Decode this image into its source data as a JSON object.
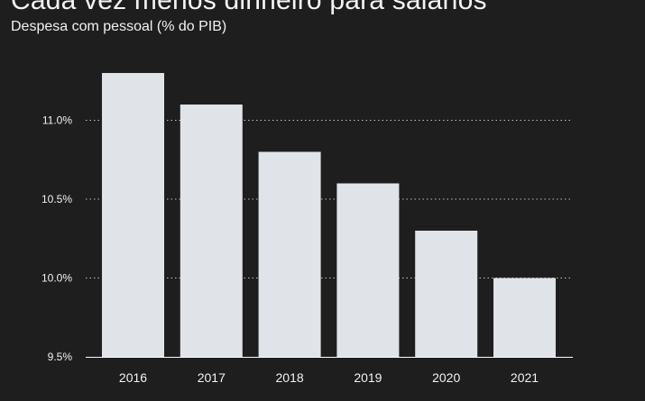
{
  "header": {
    "title": "Cada vez menos dinheiro para salários",
    "subtitle": "Despesa com pessoal (% do PIB)"
  },
  "colors": {
    "background": "#1f1e1e",
    "bar": "#e0e4e8",
    "text": "#f2f2f2",
    "grid": "#bfbfbf"
  },
  "chart_data": {
    "type": "bar",
    "title": "Cada vez menos dinheiro para salários",
    "subtitle": "Despesa com pessoal (% do PIB)",
    "categories": [
      "2016",
      "2017",
      "2018",
      "2019",
      "2020",
      "2021"
    ],
    "values": [
      11.3,
      11.1,
      10.8,
      10.6,
      10.3,
      10.0
    ],
    "ylim": [
      9.5,
      11.3
    ],
    "yticks": [
      9.5,
      10.0,
      10.5,
      11.0
    ],
    "ytick_labels": [
      "9.5%",
      "10.0%",
      "10.5%",
      "11.0%"
    ],
    "grid": "horizontal dotted",
    "xlabel": "",
    "ylabel": ""
  }
}
